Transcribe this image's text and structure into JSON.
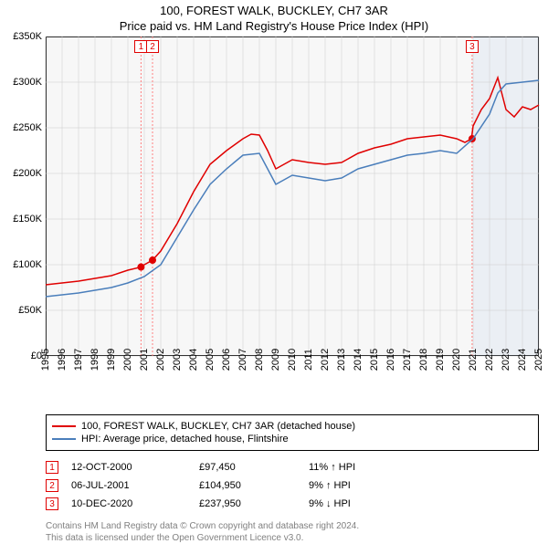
{
  "title_line1": "100, FOREST WALK, BUCKLEY, CH7 3AR",
  "title_line2": "Price paid vs. HM Land Registry's House Price Index (HPI)",
  "chart": {
    "type": "line",
    "x_start_year": 1995,
    "x_end_year": 2025,
    "y_min": 0,
    "y_max": 350000,
    "y_tick_step": 50000,
    "y_tick_prefix": "£",
    "y_tick_suffix": "K",
    "background_color": "#f7f7f7",
    "border_color": "#000000",
    "gridline_color": "#cccccc",
    "x_years": [
      1995,
      1996,
      1997,
      1998,
      1999,
      2000,
      2001,
      2002,
      2003,
      2004,
      2005,
      2006,
      2007,
      2008,
      2009,
      2010,
      2011,
      2012,
      2013,
      2014,
      2015,
      2016,
      2017,
      2018,
      2019,
      2020,
      2021,
      2022,
      2023,
      2024,
      2025
    ],
    "shaded_from_year": 2021,
    "series": [
      {
        "name": "100, FOREST WALK, BUCKLEY, CH7 3AR (detached house)",
        "color": "#e00000",
        "width": 1.5,
        "points": [
          [
            1995,
            78000
          ],
          [
            1996,
            80000
          ],
          [
            1997,
            82000
          ],
          [
            1998,
            85000
          ],
          [
            1999,
            88000
          ],
          [
            2000,
            94000
          ],
          [
            2000.8,
            97450
          ],
          [
            2001,
            100000
          ],
          [
            2001.5,
            104950
          ],
          [
            2002,
            115000
          ],
          [
            2003,
            145000
          ],
          [
            2004,
            180000
          ],
          [
            2005,
            210000
          ],
          [
            2006,
            225000
          ],
          [
            2007,
            238000
          ],
          [
            2007.5,
            243000
          ],
          [
            2008,
            242000
          ],
          [
            2008.5,
            225000
          ],
          [
            2009,
            205000
          ],
          [
            2010,
            215000
          ],
          [
            2011,
            212000
          ],
          [
            2012,
            210000
          ],
          [
            2013,
            212000
          ],
          [
            2014,
            222000
          ],
          [
            2015,
            228000
          ],
          [
            2016,
            232000
          ],
          [
            2017,
            238000
          ],
          [
            2018,
            240000
          ],
          [
            2019,
            242000
          ],
          [
            2020,
            238000
          ],
          [
            2020.5,
            234000
          ],
          [
            2020.9,
            237950
          ],
          [
            2021,
            252000
          ],
          [
            2021.5,
            270000
          ],
          [
            2022,
            282000
          ],
          [
            2022.5,
            305000
          ],
          [
            2023,
            270000
          ],
          [
            2023.5,
            262000
          ],
          [
            2024,
            273000
          ],
          [
            2024.5,
            270000
          ],
          [
            2025,
            275000
          ]
        ]
      },
      {
        "name": "HPI: Average price, detached house, Flintshire",
        "color": "#4a7ebb",
        "width": 1.5,
        "points": [
          [
            1995,
            65000
          ],
          [
            1996,
            67000
          ],
          [
            1997,
            69000
          ],
          [
            1998,
            72000
          ],
          [
            1999,
            75000
          ],
          [
            2000,
            80000
          ],
          [
            2001,
            87000
          ],
          [
            2002,
            100000
          ],
          [
            2003,
            130000
          ],
          [
            2004,
            160000
          ],
          [
            2005,
            188000
          ],
          [
            2006,
            205000
          ],
          [
            2007,
            220000
          ],
          [
            2008,
            222000
          ],
          [
            2008.5,
            205000
          ],
          [
            2009,
            188000
          ],
          [
            2010,
            198000
          ],
          [
            2011,
            195000
          ],
          [
            2012,
            192000
          ],
          [
            2013,
            195000
          ],
          [
            2014,
            205000
          ],
          [
            2015,
            210000
          ],
          [
            2016,
            215000
          ],
          [
            2017,
            220000
          ],
          [
            2018,
            222000
          ],
          [
            2019,
            225000
          ],
          [
            2020,
            222000
          ],
          [
            2021,
            238000
          ],
          [
            2022,
            265000
          ],
          [
            2022.5,
            288000
          ],
          [
            2023,
            298000
          ],
          [
            2024,
            300000
          ],
          [
            2025,
            302000
          ]
        ]
      }
    ],
    "sale_markers": [
      {
        "label": "1",
        "year": 2000.8,
        "value": 97450,
        "dot": true
      },
      {
        "label": "2",
        "year": 2001.5,
        "value": 104950,
        "dot": true
      },
      {
        "label": "3",
        "year": 2020.94,
        "value": 237950,
        "dot": true
      }
    ],
    "marker_line_color": "#ff8080",
    "marker_dot_color": "#e00000"
  },
  "legend": {
    "items": [
      {
        "color": "#e00000",
        "label": "100, FOREST WALK, BUCKLEY, CH7 3AR (detached house)"
      },
      {
        "color": "#4a7ebb",
        "label": "HPI: Average price, detached house, Flintshire"
      }
    ]
  },
  "sales_table": {
    "rows": [
      {
        "marker": "1",
        "date": "12-OCT-2000",
        "price": "£97,450",
        "delta": "11% ↑ HPI"
      },
      {
        "marker": "2",
        "date": "06-JUL-2001",
        "price": "£104,950",
        "delta": "9% ↑ HPI"
      },
      {
        "marker": "3",
        "date": "10-DEC-2020",
        "price": "£237,950",
        "delta": "9% ↓ HPI"
      }
    ]
  },
  "attribution": {
    "line1": "Contains HM Land Registry data © Crown copyright and database right 2024.",
    "line2": "This data is licensed under the Open Government Licence v3.0."
  }
}
